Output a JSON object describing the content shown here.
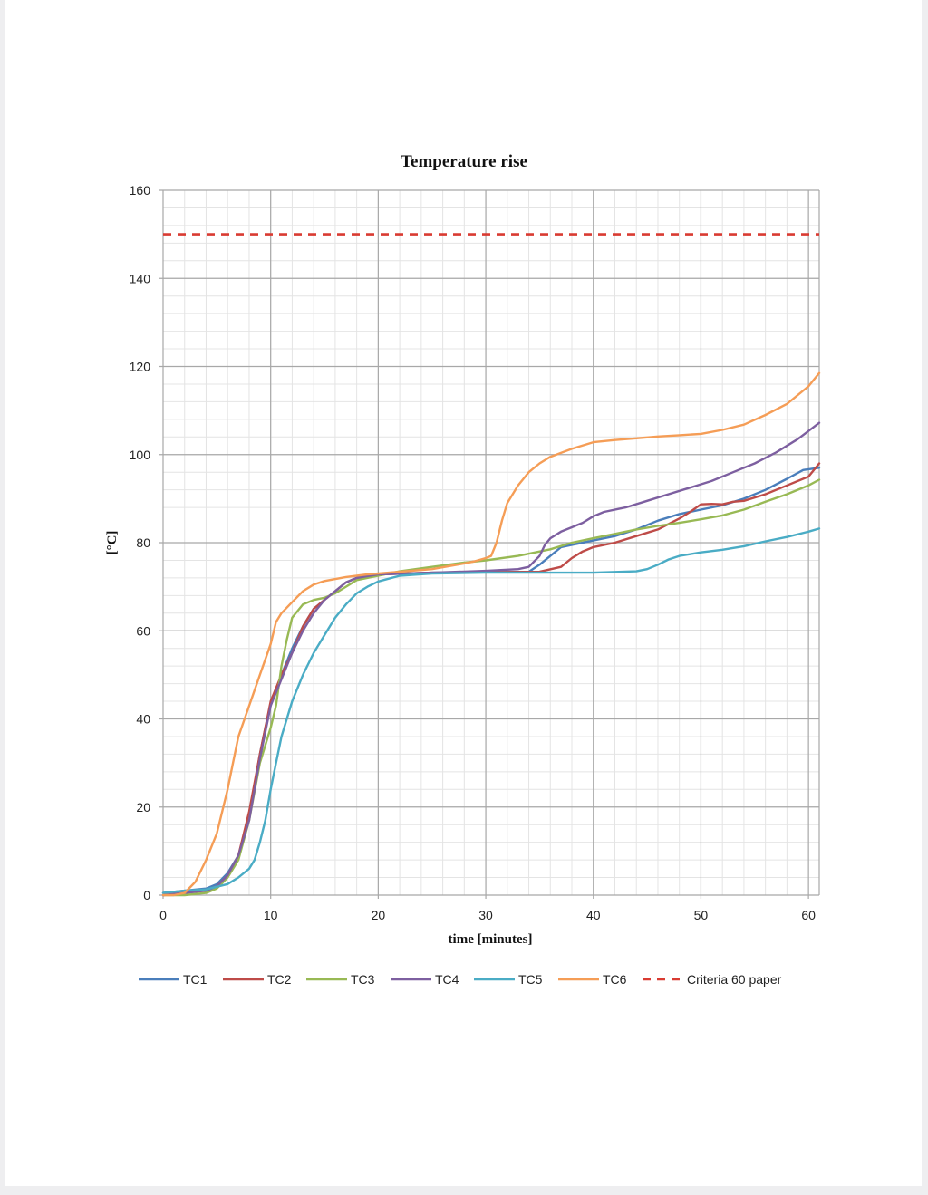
{
  "chart_data": {
    "type": "line",
    "title": "Temperature rise",
    "xlabel": "time [minutes]",
    "ylabel": "[°C]",
    "xlim": [
      0,
      61
    ],
    "ylim": [
      0,
      160
    ],
    "x_ticks": [
      "0",
      "10",
      "20",
      "30",
      "40",
      "50",
      "60"
    ],
    "y_ticks": [
      "0",
      "20",
      "40",
      "60",
      "80",
      "100",
      "120",
      "140",
      "160"
    ],
    "grid": true,
    "legend_position": "bottom",
    "series": [
      {
        "name": "TC1",
        "color": "#4a7ebb",
        "dash": false,
        "points": [
          [
            0,
            0.5
          ],
          [
            2,
            1
          ],
          [
            4,
            1.5
          ],
          [
            5,
            2.5
          ],
          [
            6,
            5
          ],
          [
            7,
            9
          ],
          [
            8,
            18
          ],
          [
            9,
            32
          ],
          [
            9.5,
            38
          ],
          [
            10,
            43
          ],
          [
            11,
            50
          ],
          [
            12,
            56
          ],
          [
            13,
            61
          ],
          [
            14,
            65
          ],
          [
            15,
            67
          ],
          [
            16,
            69
          ],
          [
            17,
            71
          ],
          [
            18,
            72
          ],
          [
            20,
            72.8
          ],
          [
            25,
            73.2
          ],
          [
            30,
            73.3
          ],
          [
            34,
            73.4
          ],
          [
            35,
            75
          ],
          [
            36,
            77
          ],
          [
            37,
            79
          ],
          [
            40,
            80.5
          ],
          [
            42,
            81.5
          ],
          [
            44,
            83
          ],
          [
            46,
            85
          ],
          [
            48,
            86.5
          ],
          [
            50,
            87.5
          ],
          [
            52,
            88.5
          ],
          [
            54,
            90
          ],
          [
            56,
            92
          ],
          [
            58,
            94.5
          ],
          [
            59.5,
            96.5
          ],
          [
            61,
            97
          ]
        ]
      },
      {
        "name": "TC2",
        "color": "#be4b48",
        "dash": false,
        "points": [
          [
            0,
            0
          ],
          [
            2,
            0.5
          ],
          [
            4,
            1
          ],
          [
            5,
            2
          ],
          [
            6,
            4.5
          ],
          [
            7,
            9
          ],
          [
            8,
            19
          ],
          [
            9,
            32
          ],
          [
            9.5,
            38
          ],
          [
            10,
            44
          ],
          [
            11,
            50
          ],
          [
            12,
            55
          ],
          [
            13,
            61
          ],
          [
            14,
            65
          ],
          [
            15,
            67
          ],
          [
            16,
            69
          ],
          [
            17,
            71
          ],
          [
            18,
            72
          ],
          [
            20,
            72.8
          ],
          [
            25,
            73.2
          ],
          [
            30,
            73.3
          ],
          [
            35,
            73.4
          ],
          [
            37,
            74.5
          ],
          [
            38,
            76.5
          ],
          [
            39,
            78
          ],
          [
            40,
            79
          ],
          [
            42,
            80
          ],
          [
            44,
            81.5
          ],
          [
            46,
            83
          ],
          [
            48,
            85.5
          ],
          [
            49,
            87
          ],
          [
            50,
            88.7
          ],
          [
            51,
            88.8
          ],
          [
            52,
            88.7
          ],
          [
            53,
            89.3
          ],
          [
            54,
            89.5
          ],
          [
            56,
            91
          ],
          [
            58,
            93
          ],
          [
            60,
            95
          ],
          [
            61,
            98
          ]
        ]
      },
      {
        "name": "TC3",
        "color": "#98b954",
        "dash": false,
        "points": [
          [
            0,
            0
          ],
          [
            2,
            0
          ],
          [
            4,
            0.5
          ],
          [
            5,
            1.5
          ],
          [
            6,
            4
          ],
          [
            7,
            8
          ],
          [
            8,
            17
          ],
          [
            9,
            30
          ],
          [
            10,
            38
          ],
          [
            10.5,
            43
          ],
          [
            11,
            52
          ],
          [
            11.5,
            58
          ],
          [
            12,
            63
          ],
          [
            13,
            66
          ],
          [
            14,
            67
          ],
          [
            15,
            67.5
          ],
          [
            16,
            68.5
          ],
          [
            17,
            70
          ],
          [
            18,
            71.5
          ],
          [
            20,
            72.5
          ],
          [
            22,
            73.5
          ],
          [
            25,
            74.5
          ],
          [
            28,
            75.5
          ],
          [
            30,
            76
          ],
          [
            33,
            77
          ],
          [
            36,
            78.5
          ],
          [
            38,
            80
          ],
          [
            40,
            81
          ],
          [
            42,
            82
          ],
          [
            44,
            83
          ],
          [
            46,
            83.8
          ],
          [
            48,
            84.5
          ],
          [
            50,
            85.3
          ],
          [
            52,
            86.2
          ],
          [
            54,
            87.5
          ],
          [
            56,
            89.3
          ],
          [
            58,
            91
          ],
          [
            60,
            93
          ],
          [
            61,
            94.3
          ]
        ]
      },
      {
        "name": "TC4",
        "color": "#7d5fa0",
        "dash": false,
        "points": [
          [
            0,
            0
          ],
          [
            2,
            0.5
          ],
          [
            4,
            1
          ],
          [
            5,
            2
          ],
          [
            6,
            4.5
          ],
          [
            7,
            9
          ],
          [
            8,
            17
          ],
          [
            9,
            31
          ],
          [
            9.5,
            37
          ],
          [
            10,
            43
          ],
          [
            11,
            49
          ],
          [
            12,
            55
          ],
          [
            13,
            60
          ],
          [
            14,
            64
          ],
          [
            15,
            67
          ],
          [
            16,
            69
          ],
          [
            17,
            71
          ],
          [
            18,
            72
          ],
          [
            20,
            72.8
          ],
          [
            25,
            73.2
          ],
          [
            30,
            73.6
          ],
          [
            33,
            74
          ],
          [
            34,
            74.5
          ],
          [
            35,
            77
          ],
          [
            35.5,
            79.5
          ],
          [
            36,
            81
          ],
          [
            37,
            82.5
          ],
          [
            38,
            83.5
          ],
          [
            39,
            84.5
          ],
          [
            40,
            86
          ],
          [
            41,
            87
          ],
          [
            43,
            88
          ],
          [
            45,
            89.5
          ],
          [
            47,
            91
          ],
          [
            49,
            92.5
          ],
          [
            51,
            94
          ],
          [
            53,
            96
          ],
          [
            55,
            98
          ],
          [
            57,
            100.5
          ],
          [
            59,
            103.5
          ],
          [
            61,
            107.2
          ]
        ]
      },
      {
        "name": "TC5",
        "color": "#4aacc5",
        "dash": false,
        "points": [
          [
            0,
            0.5
          ],
          [
            2,
            1
          ],
          [
            4,
            1.3
          ],
          [
            6,
            2.5
          ],
          [
            7,
            4
          ],
          [
            8,
            6
          ],
          [
            8.5,
            8
          ],
          [
            9,
            12
          ],
          [
            9.5,
            17
          ],
          [
            10,
            24
          ],
          [
            10.5,
            30
          ],
          [
            11,
            36
          ],
          [
            11.5,
            40
          ],
          [
            12,
            44
          ],
          [
            13,
            50
          ],
          [
            14,
            55
          ],
          [
            15,
            59
          ],
          [
            16,
            63
          ],
          [
            17,
            66
          ],
          [
            18,
            68.5
          ],
          [
            19,
            70
          ],
          [
            20,
            71.2
          ],
          [
            22,
            72.5
          ],
          [
            25,
            73
          ],
          [
            30,
            73.2
          ],
          [
            40,
            73.2
          ],
          [
            44,
            73.5
          ],
          [
            45,
            74
          ],
          [
            46,
            75
          ],
          [
            47,
            76.2
          ],
          [
            48,
            77
          ],
          [
            50,
            77.8
          ],
          [
            52,
            78.4
          ],
          [
            54,
            79.2
          ],
          [
            56,
            80.3
          ],
          [
            58,
            81.3
          ],
          [
            60,
            82.5
          ],
          [
            61,
            83.2
          ]
        ]
      },
      {
        "name": "TC6",
        "color": "#f59d56",
        "dash": false,
        "points": [
          [
            0,
            0
          ],
          [
            1,
            0
          ],
          [
            2,
            0.5
          ],
          [
            3,
            3
          ],
          [
            4,
            8
          ],
          [
            5,
            14
          ],
          [
            6,
            24
          ],
          [
            6.5,
            30
          ],
          [
            7,
            36
          ],
          [
            8,
            43
          ],
          [
            9,
            50
          ],
          [
            10,
            57
          ],
          [
            10.5,
            62
          ],
          [
            11,
            64
          ],
          [
            12,
            66.5
          ],
          [
            13,
            69
          ],
          [
            14,
            70.5
          ],
          [
            15,
            71.3
          ],
          [
            17,
            72.2
          ],
          [
            19,
            72.8
          ],
          [
            22,
            73.4
          ],
          [
            25,
            74
          ],
          [
            28,
            75.3
          ],
          [
            29,
            75.8
          ],
          [
            30,
            76.5
          ],
          [
            30.5,
            77
          ],
          [
            31,
            80
          ],
          [
            31.5,
            85
          ],
          [
            32,
            89
          ],
          [
            33,
            93
          ],
          [
            34,
            96
          ],
          [
            35,
            98
          ],
          [
            36,
            99.5
          ],
          [
            38,
            101.3
          ],
          [
            40,
            102.8
          ],
          [
            42,
            103.3
          ],
          [
            44,
            103.7
          ],
          [
            46,
            104.1
          ],
          [
            48,
            104.4
          ],
          [
            50,
            104.7
          ],
          [
            52,
            105.6
          ],
          [
            54,
            106.8
          ],
          [
            56,
            109
          ],
          [
            58,
            111.5
          ],
          [
            60,
            115.5
          ],
          [
            61,
            118.5
          ]
        ]
      },
      {
        "name": "Criteria 60 paper",
        "color": "#d93b32",
        "dash": true,
        "points": [
          [
            0,
            150
          ],
          [
            61,
            150
          ]
        ]
      }
    ]
  }
}
